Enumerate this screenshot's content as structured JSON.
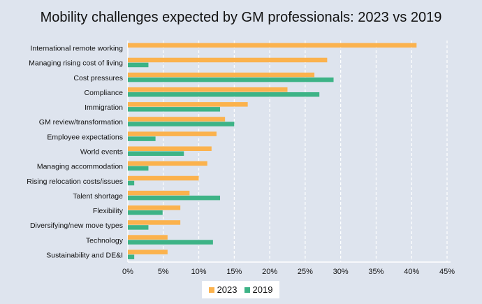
{
  "chart_data": {
    "type": "bar",
    "orientation": "horizontal",
    "title": "Mobility challenges expected by GM professionals: 2023 vs 2019",
    "categories": [
      "International remote working",
      "Managing rising cost of living",
      "Cost pressures",
      "Compliance",
      "Immigration",
      "GM review/transformation",
      "Employee expectations",
      "World events",
      "Managing accommodation",
      "Rising relocation costs/issues",
      "Talent shortage",
      "Flexibility",
      "Diversifying/new move types",
      "Technology",
      "Sustainability and DE&I"
    ],
    "series": [
      {
        "name": "2023",
        "color": "#fbb24d",
        "values": [
          40.7,
          28.1,
          26.3,
          22.5,
          16.9,
          13.7,
          12.5,
          11.8,
          11.2,
          10.0,
          8.7,
          7.4,
          7.4,
          5.6,
          5.6
        ]
      },
      {
        "name": "2019",
        "color": "#3db386",
        "values": [
          null,
          2.9,
          29.0,
          27.0,
          13.0,
          15.0,
          3.9,
          7.9,
          2.9,
          0.9,
          13.0,
          4.9,
          2.9,
          12.0,
          0.9
        ]
      }
    ],
    "xlim": [
      0,
      45
    ],
    "xticks": [
      "0%",
      "5%",
      "10%",
      "15%",
      "20%",
      "25%",
      "30%",
      "35%",
      "40%",
      "45%"
    ],
    "grid": true,
    "legend_position": "bottom"
  }
}
